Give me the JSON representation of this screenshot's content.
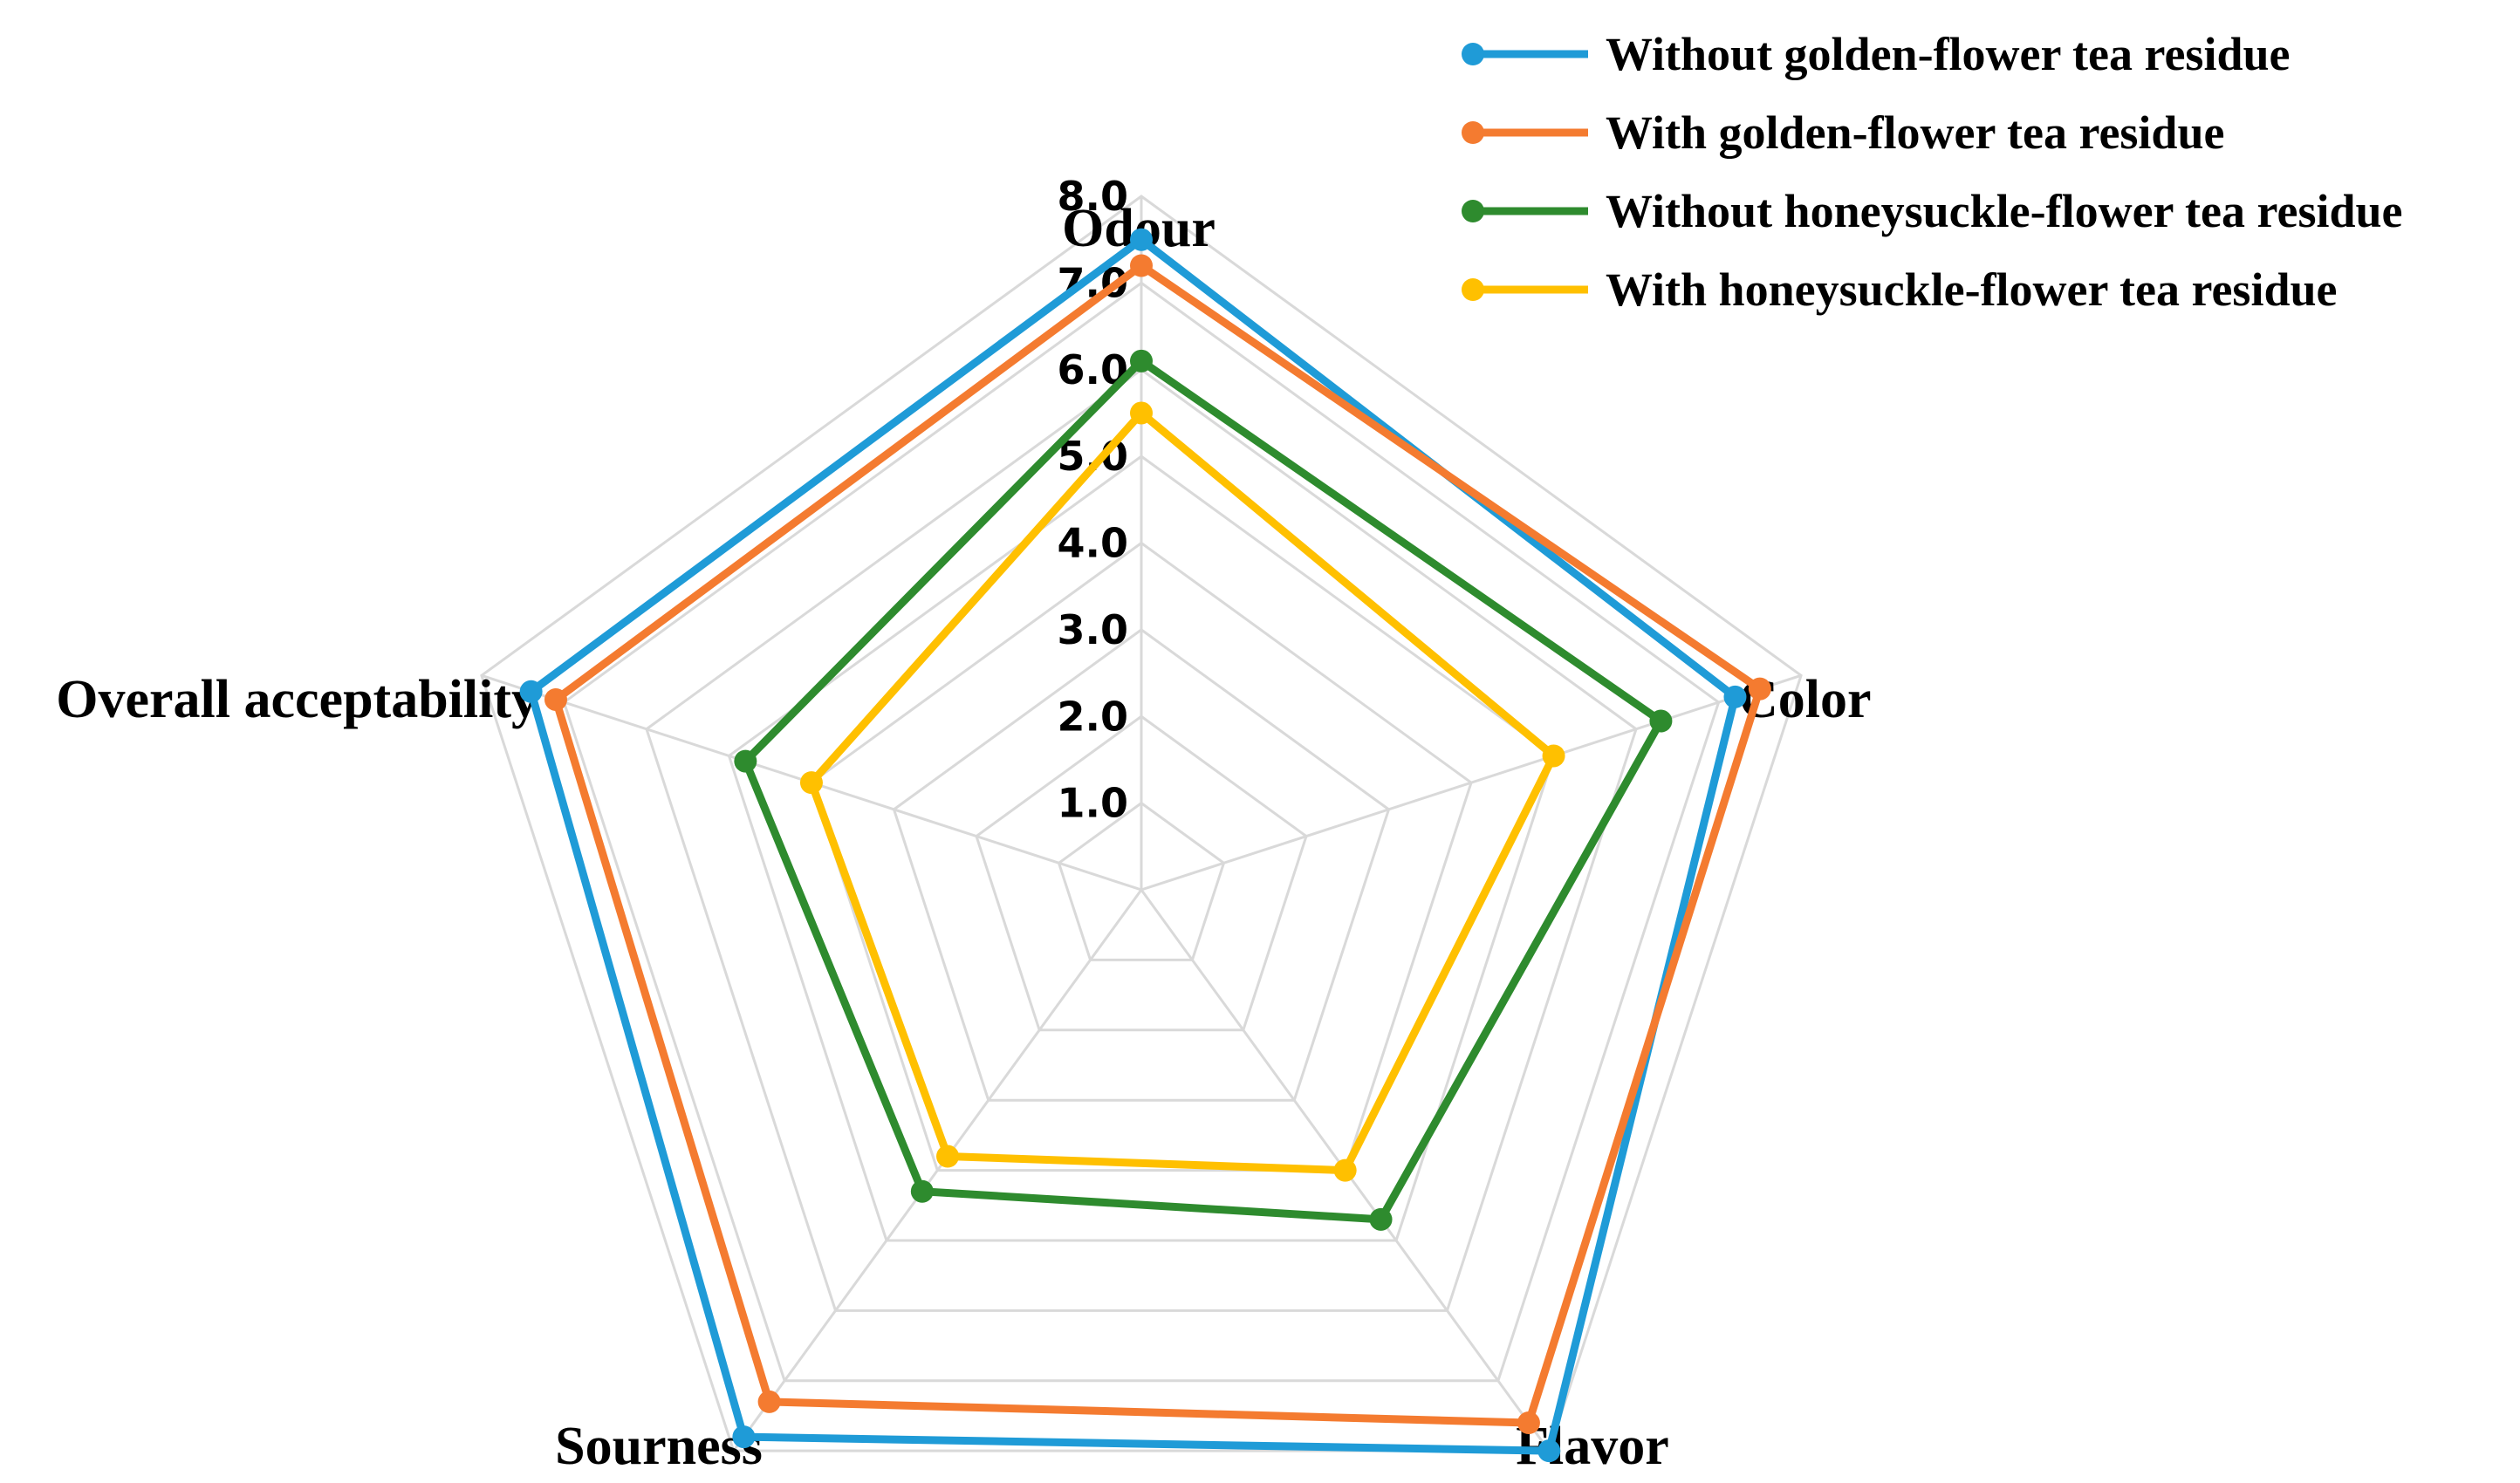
{
  "chart_data": {
    "type": "radar",
    "title": "",
    "axes": [
      "Odour",
      "Color",
      "Flavor",
      "Sourness",
      "Overall acceptability"
    ],
    "range": [
      0,
      8
    ],
    "ticks": [
      "1.0",
      "2.0",
      "3.0",
      "4.0",
      "5.0",
      "6.0",
      "7.0",
      "8.0"
    ],
    "grid": true,
    "legend_position": "top-right",
    "series": [
      {
        "name": "Without golden-flower tea residue",
        "color": "#1F9BD7",
        "values": [
          7.5,
          7.2,
          8.0,
          7.8,
          7.4
        ]
      },
      {
        "name": "With golden-flower tea residue",
        "color": "#F47B30",
        "values": [
          7.2,
          7.5,
          7.6,
          7.3,
          7.1
        ]
      },
      {
        "name": "Without honeysuckle-flower tea residue",
        "color": "#2E8B2E",
        "values": [
          6.1,
          6.3,
          4.7,
          4.3,
          4.8
        ]
      },
      {
        "name": "With honeysuckle-flower tea residue",
        "color": "#FFC000",
        "values": [
          5.5,
          5.0,
          4.0,
          3.8,
          4.0
        ]
      }
    ]
  }
}
